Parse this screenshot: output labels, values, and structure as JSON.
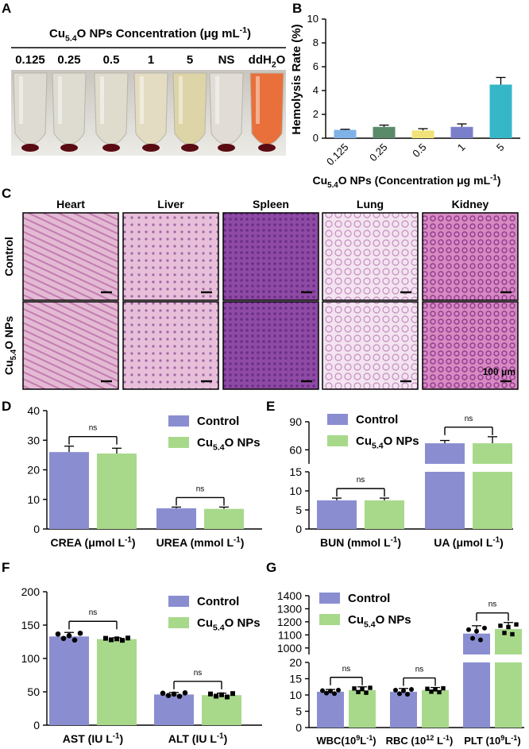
{
  "panel_letters": [
    "A",
    "B",
    "C",
    "D",
    "E",
    "F",
    "G"
  ],
  "panelA": {
    "header": "Cu5.4O NPs Concentration (μg mL-1)",
    "header_parts": {
      "pre": "Cu",
      "sub": "5.4",
      "mid": "O NPs Concentration (μg mL",
      "sup": "-1",
      "post": ")"
    },
    "tube_labels": [
      "0.125",
      "0.25",
      "0.5",
      "1",
      "5",
      "NS"
    ],
    "ddh2o_label": {
      "pre": "ddH",
      "sub": "2",
      "post": "O"
    },
    "tube_colors": [
      "#dedbd2",
      "#dedbd0",
      "#e0dccd",
      "#e3dcc2",
      "#ddd4a8",
      "#e1ddd6",
      "#e9703a"
    ]
  },
  "panelB": {
    "chart_data": {
      "type": "bar",
      "categories": [
        "0.125",
        "0.25",
        "0.5",
        "1",
        "5"
      ],
      "values": [
        0.7,
        0.95,
        0.65,
        0.95,
        4.5
      ],
      "errors": [
        0.05,
        0.15,
        0.15,
        0.25,
        0.6
      ],
      "colors": [
        "#7fb3e8",
        "#5a8a6a",
        "#f1e379",
        "#7b7fc9",
        "#36b7c8"
      ],
      "ylabel": "Hemolysis Rate (%)",
      "xlabel": "Cu5.4O NPs  (Concentration μg mL-1)",
      "xlabel_parts": {
        "pre": "Cu",
        "sub": "5.4",
        "mid": "O NPs  (Concentration μg mL",
        "sup": "-1",
        "post": ")"
      },
      "yticks": [
        "0",
        "2",
        "4",
        "6",
        "8",
        "10"
      ],
      "ylim": [
        0,
        10
      ]
    }
  },
  "panelC": {
    "columns": [
      "Heart",
      "Liver",
      "Spleen",
      "Lung",
      "Kidney"
    ],
    "rows": [
      "Control",
      "Cu5.4O NPs"
    ],
    "row2_parts": {
      "pre": "Cu",
      "sub": "5.4",
      "post": "O NPs"
    },
    "scale_label": "100 μm"
  },
  "legend": {
    "control": "Control",
    "np_parts": {
      "pre": "Cu",
      "sub": "5.4",
      "post": "O NPs"
    },
    "colors": {
      "control": "#8a8ed1",
      "np": "#a8d98b"
    }
  },
  "ns_label": "ns",
  "panelD": {
    "chart_data": {
      "type": "bar",
      "categories": [
        "CREA (μmol L-1)",
        "UREA (mmol L-1)"
      ],
      "series": [
        {
          "name": "Control",
          "values": [
            26,
            7
          ],
          "errors": [
            2,
            0.4
          ]
        },
        {
          "name": "Cu5.4O NPs",
          "values": [
            25.5,
            6.8
          ],
          "errors": [
            1.8,
            0.6
          ]
        }
      ],
      "yticks": [
        "0",
        "10",
        "20",
        "30",
        "40"
      ],
      "ylim": [
        0,
        40
      ]
    },
    "cat_parts": [
      {
        "pre": "CREA (μmol L",
        "sup": "-1",
        "post": ")"
      },
      {
        "pre": "UREA (mmol L",
        "sup": "-1",
        "post": ")"
      }
    ]
  },
  "panelE": {
    "chart_data": {
      "type": "bar",
      "categories": [
        "BUN (mmol L-1)",
        "UA (μmol L-1)"
      ],
      "series": [
        {
          "name": "Control",
          "values": [
            7.5,
            67
          ],
          "errors": [
            0.6,
            3
          ]
        },
        {
          "name": "Cu5.4O NPs",
          "values": [
            7.5,
            67
          ],
          "errors": [
            0.6,
            7
          ]
        }
      ],
      "yticks": [
        "0",
        "5",
        "10",
        "15",
        "60",
        "90"
      ],
      "ylim_lower": [
        0,
        15
      ],
      "ylim_upper": [
        45,
        90
      ]
    },
    "cat_parts": [
      {
        "pre": "BUN (mmol L",
        "sup": "-1",
        "post": ")"
      },
      {
        "pre": "UA (μmol L",
        "sup": "-1",
        "post": ")"
      }
    ]
  },
  "panelF": {
    "chart_data": {
      "type": "bar",
      "categories": [
        "AST (IU L-1)",
        "ALT (IU L-1)"
      ],
      "series": [
        {
          "name": "Control",
          "values": [
            133,
            46
          ],
          "errors": [
            6,
            3
          ]
        },
        {
          "name": "Cu5.4O NPs",
          "values": [
            129,
            45
          ],
          "errors": [
            2,
            3
          ]
        }
      ],
      "yticks": [
        "0",
        "50",
        "100",
        "150",
        "200"
      ],
      "ylim": [
        0,
        200
      ]
    },
    "cat_parts": [
      {
        "pre": "AST (IU L",
        "sup": "-1",
        "post": ")"
      },
      {
        "pre": "ALT (IU L",
        "sup": "-1",
        "post": ")"
      }
    ]
  },
  "panelG": {
    "chart_data": {
      "type": "bar",
      "categories": [
        "WBC(10^9 L-1)",
        "RBC (10^12 L-1)",
        "PLT (10^9 L-1)"
      ],
      "series": [
        {
          "name": "Control",
          "values": [
            11,
            11,
            1110
          ],
          "errors": [
            0.7,
            1,
            60
          ]
        },
        {
          "name": "Cu5.4O NPs",
          "values": [
            11.5,
            11.5,
            1145
          ],
          "errors": [
            1,
            0.8,
            50
          ]
        }
      ],
      "yticks": [
        "0",
        "5",
        "10",
        "15",
        "20",
        "1000",
        "1100",
        "1200",
        "1300",
        "1400"
      ],
      "ylim_lower": [
        0,
        20
      ],
      "ylim_upper": [
        950,
        1400
      ]
    },
    "cat_parts": [
      {
        "pre": "WBC(10",
        "sup1": "9",
        "mid": "L",
        "sup2": "-1",
        "post": ")"
      },
      {
        "pre": "RBC (10",
        "sup1": "12",
        "mid": " L",
        "sup2": "-1",
        "post": ")"
      },
      {
        "pre": "PLT (10",
        "sup1": "9",
        "mid": "L",
        "sup2": "-1",
        "post": ")"
      }
    ]
  }
}
